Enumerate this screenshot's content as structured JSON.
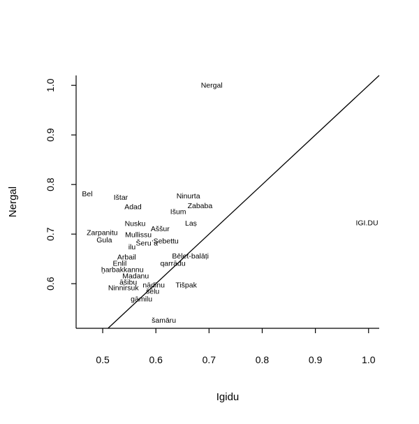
{
  "chart_data": {
    "type": "scatter",
    "title": "",
    "xlabel": "Igidu",
    "ylabel": "Nergal",
    "xlim": [
      0.45,
      1.02
    ],
    "ylim": [
      0.51,
      1.02
    ],
    "x_ticks": [
      "0.5",
      "0.6",
      "0.7",
      "0.8",
      "0.9",
      "1.0"
    ],
    "y_ticks": [
      "0.6",
      "0.7",
      "0.8",
      "0.9",
      "1.0"
    ],
    "grid": false,
    "reference_line": {
      "type": "identity",
      "from": [
        0.51,
        0.51
      ],
      "to": [
        1.02,
        1.02
      ]
    },
    "points": [
      {
        "label": "Nergal",
        "x": 0.705,
        "y": 1.0
      },
      {
        "label": "Bel",
        "x": 0.471,
        "y": 0.781
      },
      {
        "label": "Ištar",
        "x": 0.534,
        "y": 0.774
      },
      {
        "label": "Ninurta",
        "x": 0.661,
        "y": 0.777
      },
      {
        "label": "Adad",
        "x": 0.557,
        "y": 0.755
      },
      {
        "label": "Zababa",
        "x": 0.683,
        "y": 0.757
      },
      {
        "label": "Išum",
        "x": 0.642,
        "y": 0.745
      },
      {
        "label": "Nusku",
        "x": 0.561,
        "y": 0.721
      },
      {
        "label": "Laṣ",
        "x": 0.666,
        "y": 0.722
      },
      {
        "label": "Aššur",
        "x": 0.608,
        "y": 0.711
      },
      {
        "label": "Zarpanitu",
        "x": 0.499,
        "y": 0.703
      },
      {
        "label": "Mullissu",
        "x": 0.567,
        "y": 0.699
      },
      {
        "label": "Gula",
        "x": 0.503,
        "y": 0.688
      },
      {
        "label": "Šeru᾽a",
        "x": 0.583,
        "y": 0.682
      },
      {
        "label": "Sebettu",
        "x": 0.619,
        "y": 0.686
      },
      {
        "label": "ilu",
        "x": 0.555,
        "y": 0.674
      },
      {
        "label": "IGI.DU",
        "x": 0.997,
        "y": 0.723
      },
      {
        "label": "Arbail",
        "x": 0.545,
        "y": 0.654
      },
      {
        "label": "Bēlet-balāṭi",
        "x": 0.665,
        "y": 0.656
      },
      {
        "label": "Enlil",
        "x": 0.532,
        "y": 0.641
      },
      {
        "label": "qarrādu",
        "x": 0.632,
        "y": 0.641
      },
      {
        "label": "ḫarbakkannu",
        "x": 0.537,
        "y": 0.628
      },
      {
        "label": "Madanu",
        "x": 0.562,
        "y": 0.616
      },
      {
        "label": "āšibu",
        "x": 0.548,
        "y": 0.603
      },
      {
        "label": "nādinu",
        "x": 0.596,
        "y": 0.597
      },
      {
        "label": "Tišpak",
        "x": 0.657,
        "y": 0.597
      },
      {
        "label": "Ninnirsuk",
        "x": 0.539,
        "y": 0.592
      },
      {
        "label": "šēlu",
        "x": 0.594,
        "y": 0.585
      },
      {
        "label": "gāmilu",
        "x": 0.573,
        "y": 0.569
      },
      {
        "label": "šamāru",
        "x": 0.615,
        "y": 0.526
      }
    ]
  }
}
